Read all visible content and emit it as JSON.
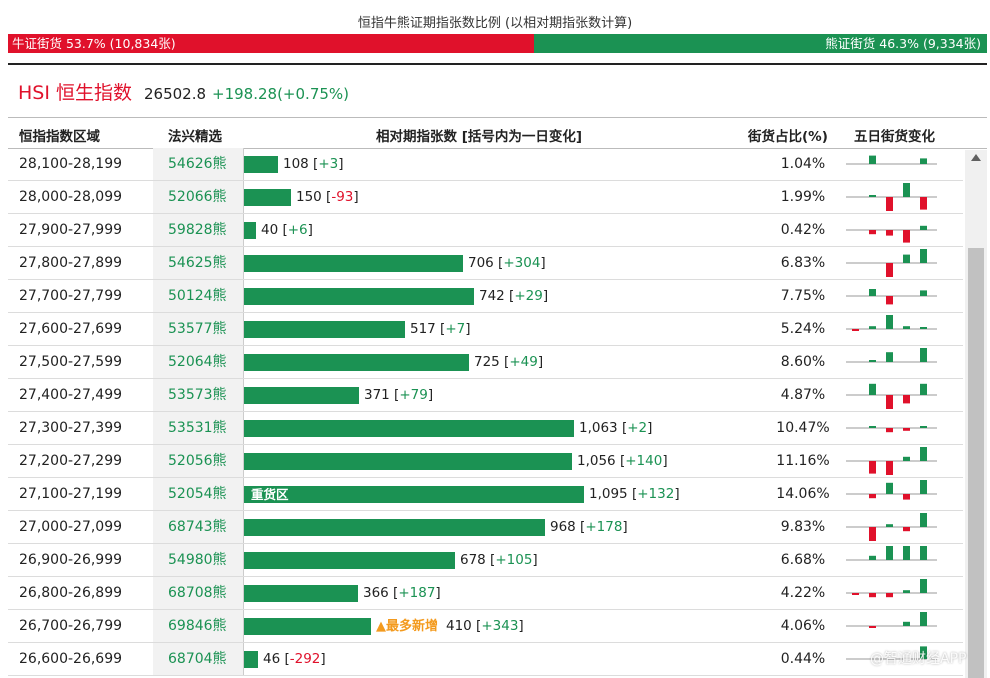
{
  "title": "恒指牛熊证期指张数比例 (以相对期指张数计算)",
  "ratio": {
    "bull_label": "牛证街货 53.7% (10,834张)",
    "bull_fraction": 0.537,
    "bear_label": "熊证街货 46.3% (9,334张)",
    "bear_fraction": 0.463,
    "bull_color": "#e0112b",
    "bear_color": "#1b9253"
  },
  "index": {
    "name": "HSI 恒生指数",
    "value": "26502.8",
    "change": "+198.28(+0.75%)"
  },
  "headers": {
    "range": "恒指指数区域",
    "code": "法兴精选",
    "contracts": "相对期指张数 [括号内为一日变化]",
    "share": "街货占比(%)",
    "five_day": "五日街货变化"
  },
  "colors": {
    "up": "#1b9253",
    "down": "#e0112b",
    "highlight": "#f39a1e"
  },
  "rows": [
    {
      "range": "28,100-28,199",
      "code": "54626熊",
      "contracts": 108,
      "contracts_text": "108",
      "delta": "+3",
      "share": "1.04%",
      "tag": "",
      "spark": [
        0,
        0.6,
        0,
        0,
        0.4
      ]
    },
    {
      "range": "28,000-28,099",
      "code": "52066熊",
      "contracts": 150,
      "contracts_text": "150",
      "delta": "-93",
      "share": "1.99%",
      "tag": "",
      "spark": [
        0,
        0.1,
        -1,
        1,
        -0.9
      ]
    },
    {
      "range": "27,900-27,999",
      "code": "59828熊",
      "contracts": 40,
      "contracts_text": "40",
      "delta": "+6",
      "share": "0.42%",
      "tag": "",
      "spark": [
        0,
        -0.3,
        -0.4,
        -0.9,
        0.3
      ]
    },
    {
      "range": "27,800-27,899",
      "code": "54625熊",
      "contracts": 706,
      "contracts_text": "706",
      "delta": "+304",
      "share": "6.83%",
      "tag": "",
      "spark": [
        0,
        0,
        -1,
        0.6,
        1
      ]
    },
    {
      "range": "27,700-27,799",
      "code": "50124熊",
      "contracts": 742,
      "contracts_text": "742",
      "delta": "+29",
      "share": "7.75%",
      "tag": "",
      "spark": [
        0,
        0.5,
        -0.6,
        0,
        0.4
      ]
    },
    {
      "range": "27,600-27,699",
      "code": "53577熊",
      "contracts": 517,
      "contracts_text": "517",
      "delta": "+7",
      "share": "5.24%",
      "tag": "",
      "spark": [
        -0.1,
        0.2,
        1,
        0.2,
        0.1
      ]
    },
    {
      "range": "27,500-27,599",
      "code": "52064熊",
      "contracts": 725,
      "contracts_text": "725",
      "delta": "+49",
      "share": "8.60%",
      "tag": "",
      "spark": [
        0,
        0.05,
        0.7,
        0,
        1
      ]
    },
    {
      "range": "27,400-27,499",
      "code": "53573熊",
      "contracts": 371,
      "contracts_text": "371",
      "delta": "+79",
      "share": "4.87%",
      "tag": "",
      "spark": [
        0,
        0.8,
        -1,
        -0.6,
        0.8
      ]
    },
    {
      "range": "27,300-27,399",
      "code": "53531熊",
      "contracts": 1063,
      "contracts_text": "1,063",
      "delta": "+2",
      "share": "10.47%",
      "tag": "",
      "spark": [
        0,
        0.1,
        -0.3,
        -0.2,
        0.1
      ]
    },
    {
      "range": "27,200-27,299",
      "code": "52056熊",
      "contracts": 1056,
      "contracts_text": "1,056",
      "delta": "+140",
      "share": "11.16%",
      "tag": "",
      "spark": [
        0,
        -0.9,
        -1,
        0.3,
        1
      ]
    },
    {
      "range": "27,100-27,199",
      "code": "52054熊",
      "contracts": 1095,
      "contracts_text": "1,095",
      "delta": "+132",
      "share": "14.06%",
      "tag": "重货区",
      "spark": [
        0,
        -0.3,
        0.8,
        -0.4,
        1
      ]
    },
    {
      "range": "27,000-27,099",
      "code": "68743熊",
      "contracts": 968,
      "contracts_text": "968",
      "delta": "+178",
      "share": "9.83%",
      "tag": "",
      "spark": [
        0,
        -1,
        0.2,
        -0.3,
        1
      ]
    },
    {
      "range": "26,900-26,999",
      "code": "54980熊",
      "contracts": 678,
      "contracts_text": "678",
      "delta": "+105",
      "share": "6.68%",
      "tag": "",
      "spark": [
        0,
        0.3,
        1,
        1,
        1
      ]
    },
    {
      "range": "26,800-26,899",
      "code": "68708熊",
      "contracts": 366,
      "contracts_text": "366",
      "delta": "+187",
      "share": "4.22%",
      "tag": "",
      "spark": [
        -0.1,
        -0.3,
        -0.3,
        0.2,
        1
      ]
    },
    {
      "range": "26,700-26,799",
      "code": "69846熊",
      "contracts": 410,
      "contracts_text": "410",
      "delta": "+343",
      "share": "4.06%",
      "tag": "▲最多新增",
      "spark": [
        0,
        -0.1,
        0,
        0.3,
        1
      ]
    },
    {
      "range": "26,600-26,699",
      "code": "68704熊",
      "contracts": 46,
      "contracts_text": "46",
      "delta": "-292",
      "share": "0.44%",
      "tag": "",
      "spark": [
        0,
        0,
        0,
        0,
        0.9
      ]
    }
  ],
  "watermark": "@智通财经APP"
}
